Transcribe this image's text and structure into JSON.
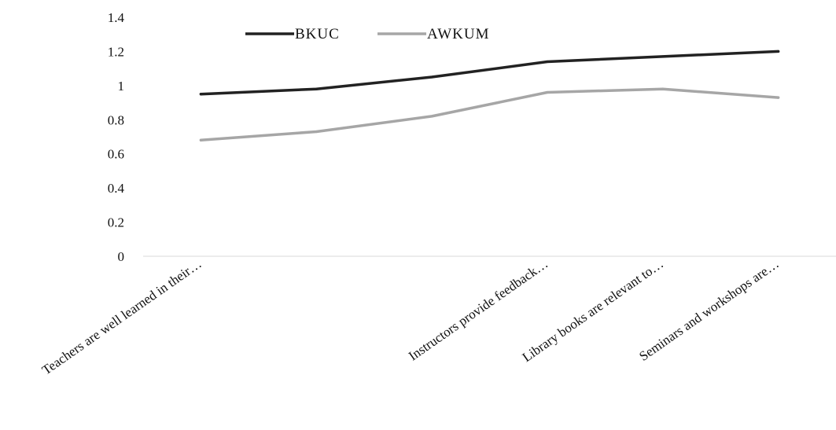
{
  "chart_data": {
    "type": "line",
    "categories": [
      "Teachers are well learned in their…",
      "",
      "",
      "Instructors provide feedback…",
      "Library books are relevant to…",
      "Seminars and workshops are…"
    ],
    "series": [
      {
        "name": "BKUC",
        "values": [
          0.95,
          0.98,
          1.05,
          1.14,
          1.17,
          1.2
        ],
        "color": "#222222"
      },
      {
        "name": "AWKUM",
        "values": [
          0.68,
          0.73,
          0.82,
          0.96,
          0.98,
          0.93
        ],
        "color": "#a6a6a6"
      }
    ],
    "yticks": [
      "0",
      "0.2",
      "0.4",
      "0.6",
      "0.8",
      "1",
      "1.2",
      "1.4"
    ],
    "ylim": [
      0,
      1.4
    ],
    "grid": false,
    "legend": "top-left"
  }
}
